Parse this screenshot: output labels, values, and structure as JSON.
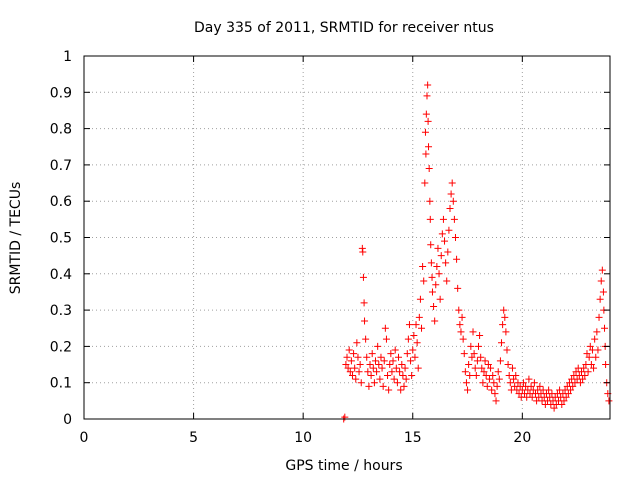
{
  "chart_data": {
    "type": "scatter",
    "title": "Day 335 of 2011, SRMTID for receiver ntus",
    "xlabel": "GPS time / hours",
    "ylabel": "SRMTID / TECUs",
    "xlim": [
      0,
      24
    ],
    "ylim": [
      0,
      1
    ],
    "x_ticks": [
      "0",
      "5",
      "10",
      "15",
      "20"
    ],
    "y_ticks": [
      "0",
      "0.1",
      "0.2",
      "0.3",
      "0.4",
      "0.5",
      "0.6",
      "0.7",
      "0.8",
      "0.9",
      "1"
    ],
    "grid": true,
    "marker": "+",
    "series": [
      {
        "name": "SRMTID",
        "color": "#ff0000",
        "points": [
          [
            11.85,
            0.0
          ],
          [
            11.9,
            0.005
          ],
          [
            11.95,
            0.15
          ],
          [
            12.0,
            0.17
          ],
          [
            12.05,
            0.14
          ],
          [
            12.1,
            0.19
          ],
          [
            12.15,
            0.13
          ],
          [
            12.2,
            0.16
          ],
          [
            12.25,
            0.12
          ],
          [
            12.3,
            0.18
          ],
          [
            12.35,
            0.14
          ],
          [
            12.4,
            0.11
          ],
          [
            12.45,
            0.21
          ],
          [
            12.5,
            0.17
          ],
          [
            12.55,
            0.13
          ],
          [
            12.6,
            0.15
          ],
          [
            12.65,
            0.1
          ],
          [
            12.7,
            0.47
          ],
          [
            12.72,
            0.46
          ],
          [
            12.75,
            0.39
          ],
          [
            12.78,
            0.32
          ],
          [
            12.8,
            0.27
          ],
          [
            12.85,
            0.22
          ],
          [
            12.9,
            0.17
          ],
          [
            12.95,
            0.13
          ],
          [
            13.0,
            0.09
          ],
          [
            13.05,
            0.15
          ],
          [
            13.1,
            0.12
          ],
          [
            13.15,
            0.18
          ],
          [
            13.2,
            0.14
          ],
          [
            13.25,
            0.1
          ],
          [
            13.3,
            0.16
          ],
          [
            13.35,
            0.13
          ],
          [
            13.4,
            0.2
          ],
          [
            13.45,
            0.15
          ],
          [
            13.5,
            0.11
          ],
          [
            13.55,
            0.17
          ],
          [
            13.6,
            0.14
          ],
          [
            13.65,
            0.09
          ],
          [
            13.7,
            0.16
          ],
          [
            13.75,
            0.25
          ],
          [
            13.8,
            0.22
          ],
          [
            13.85,
            0.12
          ],
          [
            13.9,
            0.08
          ],
          [
            13.95,
            0.15
          ],
          [
            14.0,
            0.18
          ],
          [
            14.05,
            0.13
          ],
          [
            14.1,
            0.16
          ],
          [
            14.15,
            0.11
          ],
          [
            14.2,
            0.19
          ],
          [
            14.25,
            0.14
          ],
          [
            14.3,
            0.1
          ],
          [
            14.35,
            0.17
          ],
          [
            14.4,
            0.13
          ],
          [
            14.45,
            0.08
          ],
          [
            14.5,
            0.15
          ],
          [
            14.55,
            0.12
          ],
          [
            14.6,
            0.09
          ],
          [
            14.65,
            0.14
          ],
          [
            14.7,
            0.11
          ],
          [
            14.75,
            0.18
          ],
          [
            14.8,
            0.22
          ],
          [
            14.85,
            0.26
          ],
          [
            14.9,
            0.16
          ],
          [
            14.95,
            0.12
          ],
          [
            15.0,
            0.19
          ],
          [
            15.05,
            0.23
          ],
          [
            15.1,
            0.17
          ],
          [
            15.15,
            0.26
          ],
          [
            15.2,
            0.21
          ],
          [
            15.25,
            0.14
          ],
          [
            15.3,
            0.28
          ],
          [
            15.35,
            0.33
          ],
          [
            15.4,
            0.25
          ],
          [
            15.45,
            0.42
          ],
          [
            15.5,
            0.38
          ],
          [
            15.55,
            0.65
          ],
          [
            15.58,
            0.79
          ],
          [
            15.6,
            0.73
          ],
          [
            15.62,
            0.84
          ],
          [
            15.65,
            0.89
          ],
          [
            15.68,
            0.92
          ],
          [
            15.7,
            0.82
          ],
          [
            15.72,
            0.75
          ],
          [
            15.75,
            0.69
          ],
          [
            15.78,
            0.6
          ],
          [
            15.8,
            0.55
          ],
          [
            15.82,
            0.48
          ],
          [
            15.85,
            0.43
          ],
          [
            15.88,
            0.39
          ],
          [
            15.9,
            0.35
          ],
          [
            15.95,
            0.31
          ],
          [
            16.0,
            0.27
          ],
          [
            16.05,
            0.37
          ],
          [
            16.1,
            0.42
          ],
          [
            16.15,
            0.47
          ],
          [
            16.2,
            0.4
          ],
          [
            16.25,
            0.33
          ],
          [
            16.3,
            0.45
          ],
          [
            16.35,
            0.51
          ],
          [
            16.4,
            0.55
          ],
          [
            16.45,
            0.49
          ],
          [
            16.5,
            0.43
          ],
          [
            16.55,
            0.38
          ],
          [
            16.6,
            0.46
          ],
          [
            16.65,
            0.52
          ],
          [
            16.7,
            0.58
          ],
          [
            16.75,
            0.62
          ],
          [
            16.8,
            0.65
          ],
          [
            16.85,
            0.6
          ],
          [
            16.9,
            0.55
          ],
          [
            16.95,
            0.5
          ],
          [
            17.0,
            0.44
          ],
          [
            17.05,
            0.36
          ],
          [
            17.1,
            0.3
          ],
          [
            17.15,
            0.26
          ],
          [
            17.2,
            0.24
          ],
          [
            17.25,
            0.28
          ],
          [
            17.3,
            0.22
          ],
          [
            17.35,
            0.18
          ],
          [
            17.4,
            0.13
          ],
          [
            17.45,
            0.1
          ],
          [
            17.5,
            0.08
          ],
          [
            17.55,
            0.15
          ],
          [
            17.6,
            0.12
          ],
          [
            17.65,
            0.2
          ],
          [
            17.7,
            0.17
          ],
          [
            17.75,
            0.24
          ],
          [
            17.8,
            0.18
          ],
          [
            17.85,
            0.14
          ],
          [
            17.9,
            0.12
          ],
          [
            17.95,
            0.16
          ],
          [
            18.0,
            0.2
          ],
          [
            18.05,
            0.23
          ],
          [
            18.1,
            0.17
          ],
          [
            18.15,
            0.14
          ],
          [
            18.2,
            0.1
          ],
          [
            18.25,
            0.13
          ],
          [
            18.3,
            0.16
          ],
          [
            18.35,
            0.12
          ],
          [
            18.4,
            0.09
          ],
          [
            18.45,
            0.15
          ],
          [
            18.5,
            0.11
          ],
          [
            18.55,
            0.14
          ],
          [
            18.6,
            0.08
          ],
          [
            18.65,
            0.12
          ],
          [
            18.7,
            0.1
          ],
          [
            18.75,
            0.07
          ],
          [
            18.8,
            0.05
          ],
          [
            18.85,
            0.09
          ],
          [
            18.9,
            0.13
          ],
          [
            18.95,
            0.11
          ],
          [
            19.0,
            0.16
          ],
          [
            19.05,
            0.21
          ],
          [
            19.1,
            0.26
          ],
          [
            19.15,
            0.3
          ],
          [
            19.2,
            0.28
          ],
          [
            19.25,
            0.24
          ],
          [
            19.3,
            0.19
          ],
          [
            19.35,
            0.15
          ],
          [
            19.4,
            0.12
          ],
          [
            19.45,
            0.1
          ],
          [
            19.5,
            0.08
          ],
          [
            19.55,
            0.14
          ],
          [
            19.6,
            0.11
          ],
          [
            19.65,
            0.09
          ],
          [
            19.7,
            0.12
          ],
          [
            19.75,
            0.08
          ],
          [
            19.8,
            0.1
          ],
          [
            19.85,
            0.07
          ],
          [
            19.9,
            0.09
          ],
          [
            19.95,
            0.06
          ],
          [
            20.0,
            0.08
          ],
          [
            20.05,
            0.1
          ],
          [
            20.1,
            0.07
          ],
          [
            20.15,
            0.09
          ],
          [
            20.2,
            0.06
          ],
          [
            20.25,
            0.08
          ],
          [
            20.3,
            0.11
          ],
          [
            20.35,
            0.07
          ],
          [
            20.4,
            0.09
          ],
          [
            20.45,
            0.06
          ],
          [
            20.5,
            0.08
          ],
          [
            20.55,
            0.1
          ],
          [
            20.6,
            0.07
          ],
          [
            20.65,
            0.05
          ],
          [
            20.7,
            0.08
          ],
          [
            20.75,
            0.06
          ],
          [
            20.8,
            0.09
          ],
          [
            20.85,
            0.07
          ],
          [
            20.9,
            0.05
          ],
          [
            20.95,
            0.08
          ],
          [
            21.0,
            0.06
          ],
          [
            21.05,
            0.04
          ],
          [
            21.1,
            0.07
          ],
          [
            21.15,
            0.05
          ],
          [
            21.2,
            0.08
          ],
          [
            21.25,
            0.06
          ],
          [
            21.3,
            0.04
          ],
          [
            21.35,
            0.07
          ],
          [
            21.4,
            0.05
          ],
          [
            21.45,
            0.03
          ],
          [
            21.5,
            0.06
          ],
          [
            21.55,
            0.04
          ],
          [
            21.6,
            0.07
          ],
          [
            21.65,
            0.05
          ],
          [
            21.7,
            0.08
          ],
          [
            21.75,
            0.06
          ],
          [
            21.8,
            0.04
          ],
          [
            21.85,
            0.07
          ],
          [
            21.9,
            0.05
          ],
          [
            21.95,
            0.08
          ],
          [
            22.0,
            0.06
          ],
          [
            22.05,
            0.09
          ],
          [
            22.1,
            0.07
          ],
          [
            22.15,
            0.1
          ],
          [
            22.2,
            0.08
          ],
          [
            22.25,
            0.11
          ],
          [
            22.3,
            0.09
          ],
          [
            22.35,
            0.12
          ],
          [
            22.4,
            0.1
          ],
          [
            22.45,
            0.13
          ],
          [
            22.5,
            0.11
          ],
          [
            22.55,
            0.14
          ],
          [
            22.6,
            0.12
          ],
          [
            22.65,
            0.1
          ],
          [
            22.7,
            0.13
          ],
          [
            22.75,
            0.11
          ],
          [
            22.8,
            0.14
          ],
          [
            22.85,
            0.12
          ],
          [
            22.9,
            0.15
          ],
          [
            22.95,
            0.18
          ],
          [
            23.0,
            0.13
          ],
          [
            23.05,
            0.17
          ],
          [
            23.1,
            0.2
          ],
          [
            23.15,
            0.15
          ],
          [
            23.2,
            0.19
          ],
          [
            23.25,
            0.14
          ],
          [
            23.3,
            0.22
          ],
          [
            23.35,
            0.17
          ],
          [
            23.4,
            0.24
          ],
          [
            23.45,
            0.19
          ],
          [
            23.5,
            0.28
          ],
          [
            23.55,
            0.33
          ],
          [
            23.6,
            0.38
          ],
          [
            23.65,
            0.41
          ],
          [
            23.7,
            0.35
          ],
          [
            23.72,
            0.3
          ],
          [
            23.75,
            0.25
          ],
          [
            23.78,
            0.2
          ],
          [
            23.8,
            0.15
          ],
          [
            23.85,
            0.1
          ],
          [
            23.9,
            0.07
          ],
          [
            23.95,
            0.05
          ]
        ]
      }
    ]
  }
}
